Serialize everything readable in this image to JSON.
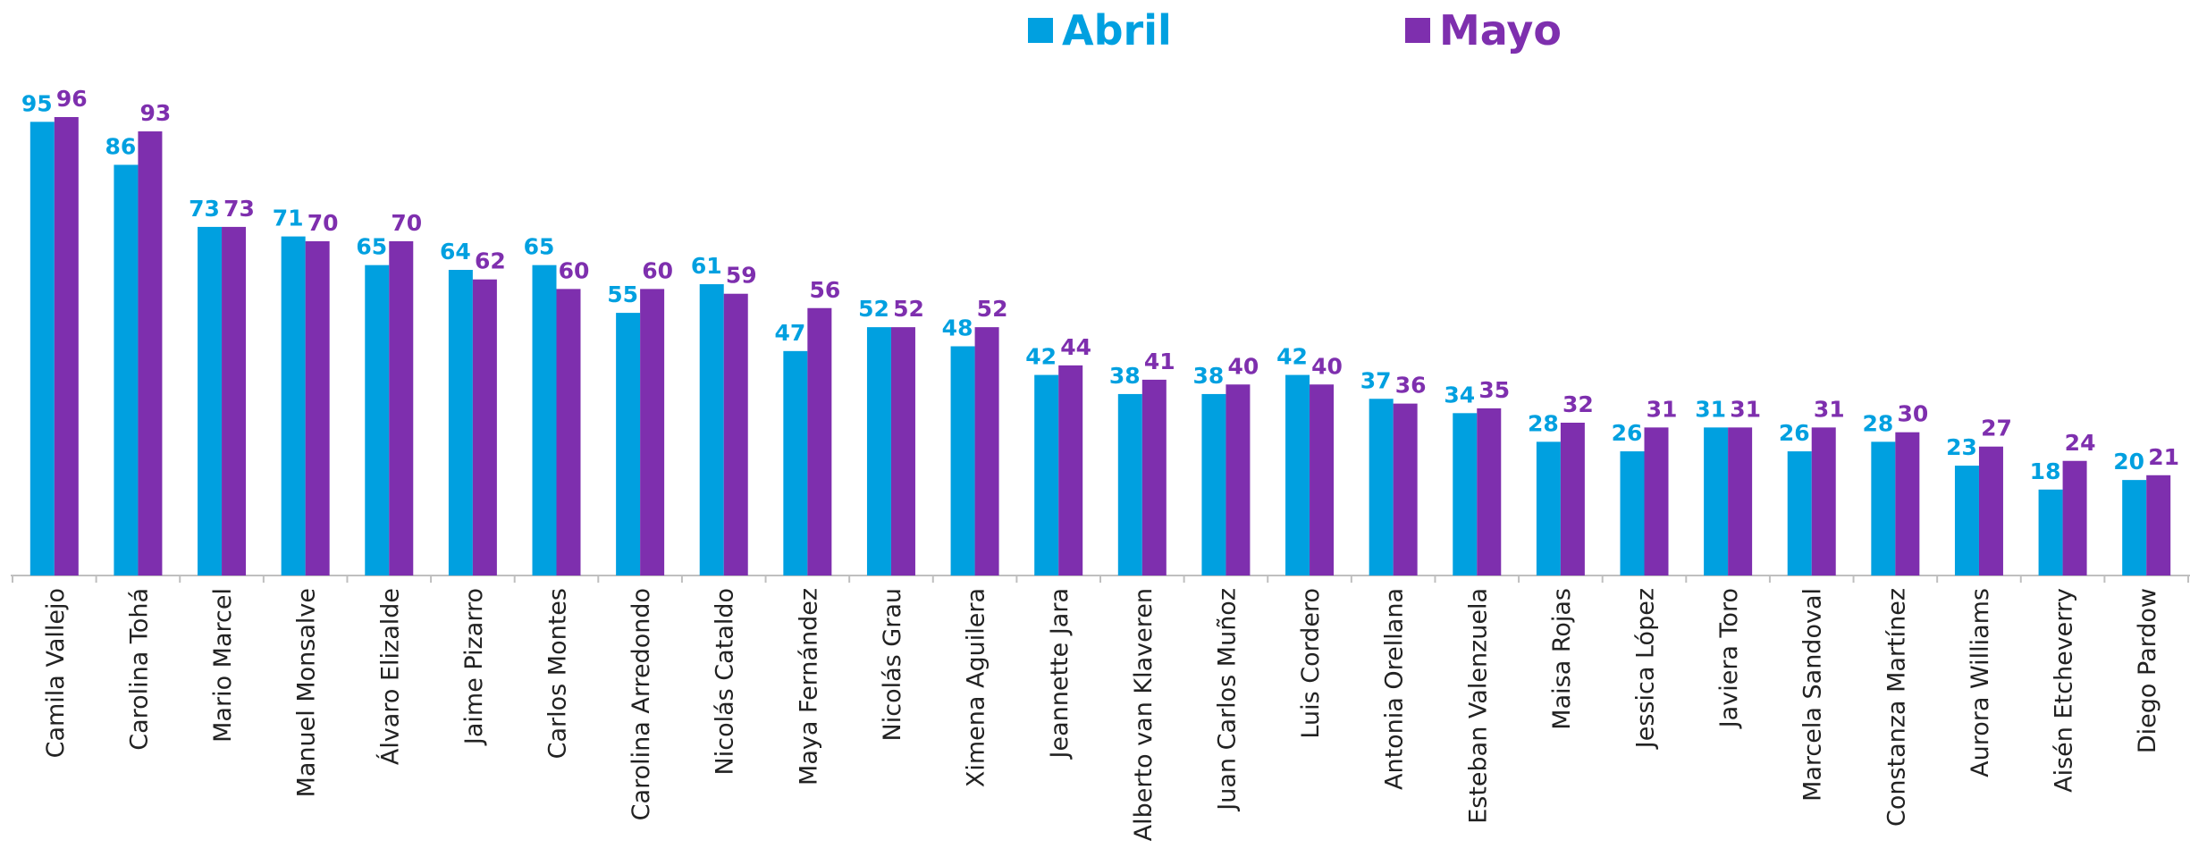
{
  "chart_data": {
    "type": "bar",
    "categories": [
      "Camila Vallejo",
      "Carolina Tohá",
      "Mario Marcel",
      "Manuel Monsalve",
      "Álvaro Elizalde",
      "Jaime Pizarro",
      "Carlos Montes",
      "Carolina Arredondo",
      "Nicolás Cataldo",
      "Maya Fernández",
      "Nicolás Grau",
      "Ximena Aguilera",
      "Jeannette Jara",
      "Alberto van Klaveren",
      "Juan Carlos Muñoz",
      "Luis Cordero",
      "Antonia Orellana",
      "Esteban Valenzuela",
      "Maisa Rojas",
      "Jessica López",
      "Javiera Toro",
      "Marcela Sandoval",
      "Constanza Martínez",
      "Aurora Williams",
      "Aisén Etcheverry",
      "Diego Pardow"
    ],
    "series": [
      {
        "name": "Abril",
        "color": "#00a0e0",
        "values": [
          95,
          86,
          73,
          71,
          65,
          64,
          65,
          55,
          61,
          47,
          52,
          48,
          42,
          38,
          38,
          42,
          37,
          34,
          28,
          26,
          31,
          26,
          28,
          23,
          18,
          20
        ]
      },
      {
        "name": "Mayo",
        "color": "#7e2fae",
        "values": [
          96,
          93,
          73,
          70,
          70,
          62,
          60,
          60,
          59,
          56,
          52,
          52,
          44,
          41,
          40,
          40,
          36,
          35,
          32,
          31,
          31,
          31,
          30,
          27,
          24,
          21
        ]
      }
    ]
  }
}
